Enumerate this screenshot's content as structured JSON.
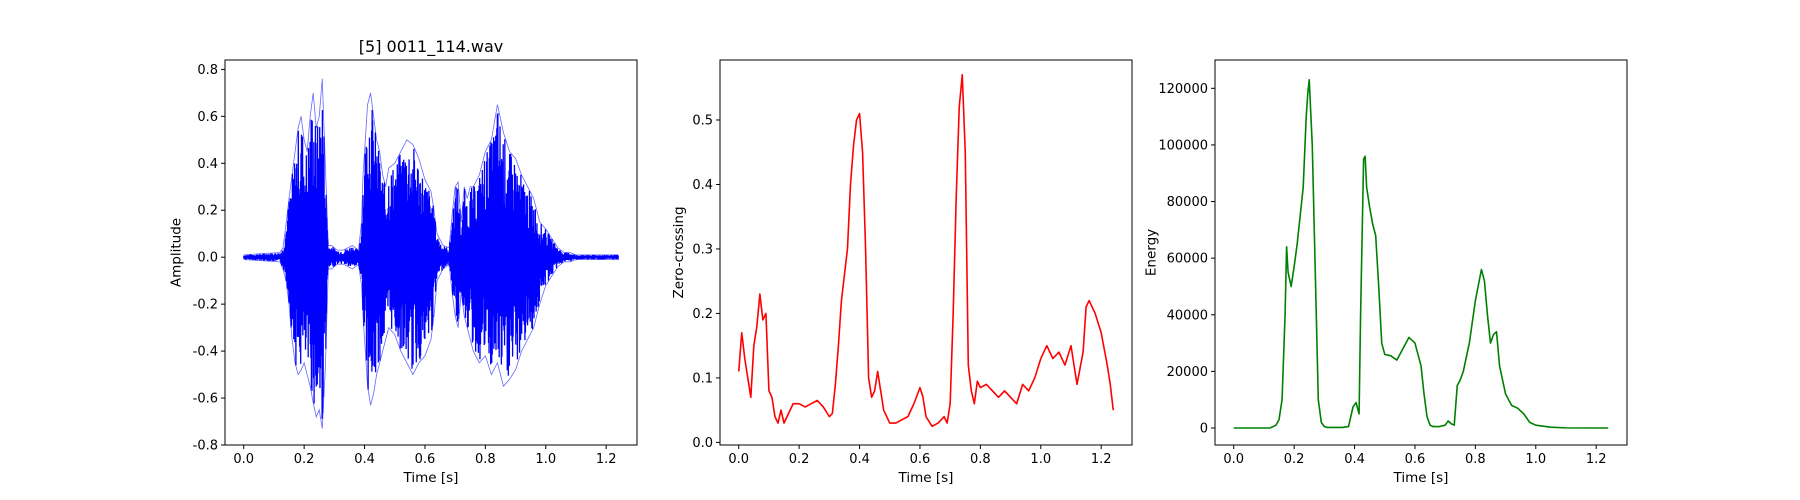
{
  "chart_data": [
    {
      "type": "line",
      "title": "[5] 0011_114.wav",
      "xlabel": "Time [s]",
      "ylabel": "Amplitude",
      "xlim": [
        -0.062,
        1.302
      ],
      "ylim": [
        -0.8,
        0.84
      ],
      "xticks": [
        0.0,
        0.2,
        0.4,
        0.6,
        0.8,
        1.0,
        1.2
      ],
      "yticks": [
        -0.8,
        -0.6,
        -0.4,
        -0.2,
        0.0,
        0.2,
        0.4,
        0.6,
        0.8
      ],
      "color": "#0000ff",
      "grid": false,
      "series": [
        {
          "envelope": {
            "x": [
              0.0,
              0.12,
              0.13,
              0.14,
              0.15,
              0.16,
              0.17,
              0.18,
              0.19,
              0.2,
              0.21,
              0.22,
              0.23,
              0.24,
              0.25,
              0.26,
              0.27,
              0.28,
              0.29,
              0.31,
              0.33,
              0.36,
              0.38,
              0.39,
              0.395,
              0.4,
              0.41,
              0.42,
              0.43,
              0.44,
              0.45,
              0.46,
              0.47,
              0.48,
              0.5,
              0.52,
              0.54,
              0.56,
              0.58,
              0.6,
              0.62,
              0.63,
              0.64,
              0.66,
              0.68,
              0.69,
              0.7,
              0.71,
              0.72,
              0.73,
              0.74,
              0.75,
              0.76,
              0.78,
              0.8,
              0.82,
              0.84,
              0.86,
              0.88,
              0.9,
              0.92,
              0.94,
              0.96,
              0.98,
              1.0,
              1.02,
              1.04,
              1.06,
              1.08,
              1.1,
              1.15,
              1.24
            ],
            "upper": [
              0.01,
              0.02,
              0.04,
              0.14,
              0.25,
              0.35,
              0.45,
              0.55,
              0.6,
              0.5,
              0.45,
              0.6,
              0.7,
              0.55,
              0.6,
              0.76,
              0.4,
              0.05,
              0.05,
              0.03,
              0.03,
              0.05,
              0.03,
              0.15,
              0.35,
              0.45,
              0.65,
              0.7,
              0.6,
              0.5,
              0.45,
              0.35,
              0.3,
              0.38,
              0.4,
              0.45,
              0.5,
              0.48,
              0.42,
              0.33,
              0.28,
              0.2,
              0.1,
              0.05,
              0.04,
              0.18,
              0.3,
              0.32,
              0.15,
              0.3,
              0.25,
              0.3,
              0.3,
              0.35,
              0.45,
              0.5,
              0.65,
              0.53,
              0.45,
              0.42,
              0.35,
              0.3,
              0.25,
              0.15,
              0.12,
              0.08,
              0.04,
              0.02,
              0.02,
              0.01,
              0.01,
              0.01
            ],
            "lower": [
              -0.01,
              -0.02,
              -0.05,
              -0.1,
              -0.2,
              -0.35,
              -0.45,
              -0.5,
              -0.48,
              -0.45,
              -0.5,
              -0.55,
              -0.62,
              -0.68,
              -0.65,
              -0.73,
              -0.48,
              -0.05,
              -0.05,
              -0.03,
              -0.03,
              -0.05,
              -0.03,
              -0.12,
              -0.25,
              -0.35,
              -0.55,
              -0.63,
              -0.58,
              -0.5,
              -0.45,
              -0.4,
              -0.35,
              -0.3,
              -0.33,
              -0.4,
              -0.45,
              -0.5,
              -0.45,
              -0.42,
              -0.35,
              -0.25,
              -0.1,
              -0.05,
              -0.03,
              -0.15,
              -0.25,
              -0.3,
              -0.15,
              -0.25,
              -0.3,
              -0.35,
              -0.4,
              -0.45,
              -0.42,
              -0.5,
              -0.45,
              -0.55,
              -0.52,
              -0.48,
              -0.4,
              -0.35,
              -0.3,
              -0.2,
              -0.12,
              -0.08,
              -0.04,
              -0.02,
              -0.02,
              -0.01,
              -0.01,
              -0.01
            ]
          }
        }
      ]
    },
    {
      "type": "line",
      "title": "",
      "xlabel": "Time [s]",
      "ylabel": "Zero-crossing",
      "xlim": [
        -0.062,
        1.302
      ],
      "ylim": [
        -0.004,
        0.593
      ],
      "xticks": [
        0.0,
        0.2,
        0.4,
        0.6,
        0.8,
        1.0,
        1.2
      ],
      "yticks": [
        0.0,
        0.1,
        0.2,
        0.3,
        0.4,
        0.5
      ],
      "color": "#ff0000",
      "grid": false,
      "series": [
        {
          "x": [
            0.0,
            0.01,
            0.02,
            0.03,
            0.04,
            0.05,
            0.06,
            0.07,
            0.08,
            0.09,
            0.1,
            0.11,
            0.12,
            0.13,
            0.14,
            0.15,
            0.16,
            0.18,
            0.2,
            0.22,
            0.24,
            0.26,
            0.28,
            0.3,
            0.31,
            0.32,
            0.33,
            0.34,
            0.35,
            0.36,
            0.37,
            0.38,
            0.39,
            0.4,
            0.41,
            0.42,
            0.43,
            0.44,
            0.45,
            0.46,
            0.47,
            0.48,
            0.5,
            0.52,
            0.54,
            0.56,
            0.58,
            0.6,
            0.61,
            0.62,
            0.64,
            0.66,
            0.68,
            0.69,
            0.7,
            0.71,
            0.72,
            0.73,
            0.74,
            0.75,
            0.76,
            0.77,
            0.78,
            0.79,
            0.8,
            0.82,
            0.84,
            0.86,
            0.88,
            0.9,
            0.92,
            0.94,
            0.96,
            0.98,
            1.0,
            1.02,
            1.04,
            1.06,
            1.08,
            1.1,
            1.12,
            1.14,
            1.15,
            1.16,
            1.18,
            1.2,
            1.22,
            1.23,
            1.24
          ],
          "y": [
            0.11,
            0.17,
            0.13,
            0.1,
            0.07,
            0.15,
            0.18,
            0.23,
            0.19,
            0.2,
            0.08,
            0.07,
            0.04,
            0.03,
            0.05,
            0.03,
            0.04,
            0.06,
            0.06,
            0.055,
            0.06,
            0.065,
            0.055,
            0.04,
            0.045,
            0.09,
            0.15,
            0.22,
            0.26,
            0.3,
            0.4,
            0.46,
            0.5,
            0.51,
            0.45,
            0.3,
            0.1,
            0.07,
            0.08,
            0.11,
            0.08,
            0.05,
            0.03,
            0.03,
            0.035,
            0.04,
            0.06,
            0.085,
            0.07,
            0.04,
            0.025,
            0.03,
            0.04,
            0.03,
            0.06,
            0.2,
            0.38,
            0.52,
            0.57,
            0.45,
            0.12,
            0.08,
            0.06,
            0.095,
            0.085,
            0.09,
            0.08,
            0.07,
            0.08,
            0.07,
            0.06,
            0.09,
            0.08,
            0.1,
            0.13,
            0.15,
            0.13,
            0.14,
            0.12,
            0.15,
            0.09,
            0.14,
            0.21,
            0.22,
            0.2,
            0.17,
            0.12,
            0.09,
            0.05
          ]
        }
      ]
    },
    {
      "type": "line",
      "title": "",
      "xlabel": "Time [s]",
      "ylabel": "Energy",
      "xlim": [
        -0.062,
        1.302
      ],
      "ylim": [
        -6000,
        130000
      ],
      "xticks": [
        0.0,
        0.2,
        0.4,
        0.6,
        0.8,
        1.0,
        1.2
      ],
      "yticks": [
        0,
        20000,
        40000,
        60000,
        80000,
        100000,
        120000
      ],
      "color": "#008000",
      "grid": false,
      "series": [
        {
          "x": [
            0.0,
            0.12,
            0.14,
            0.15,
            0.16,
            0.17,
            0.175,
            0.18,
            0.19,
            0.2,
            0.21,
            0.22,
            0.23,
            0.24,
            0.245,
            0.25,
            0.26,
            0.27,
            0.28,
            0.29,
            0.3,
            0.31,
            0.36,
            0.38,
            0.395,
            0.405,
            0.415,
            0.42,
            0.43,
            0.435,
            0.44,
            0.45,
            0.46,
            0.47,
            0.48,
            0.49,
            0.5,
            0.52,
            0.54,
            0.56,
            0.58,
            0.6,
            0.61,
            0.62,
            0.63,
            0.64,
            0.65,
            0.66,
            0.68,
            0.7,
            0.71,
            0.72,
            0.73,
            0.74,
            0.75,
            0.76,
            0.78,
            0.8,
            0.82,
            0.83,
            0.84,
            0.85,
            0.86,
            0.87,
            0.88,
            0.9,
            0.92,
            0.94,
            0.96,
            0.98,
            1.0,
            1.05,
            1.1,
            1.24
          ],
          "y": [
            0,
            0,
            1000,
            3000,
            10000,
            40000,
            64000,
            55000,
            50000,
            57000,
            65000,
            75000,
            85000,
            110000,
            118000,
            123000,
            100000,
            55000,
            10000,
            2000,
            500,
            200,
            200,
            500,
            7500,
            9000,
            5000,
            40000,
            95000,
            96000,
            85000,
            78000,
            72000,
            68000,
            50000,
            30000,
            26000,
            25500,
            24000,
            28000,
            32000,
            30000,
            26000,
            22000,
            12000,
            4000,
            1000,
            500,
            500,
            1000,
            2500,
            1500,
            1000,
            15000,
            17000,
            20000,
            30000,
            45000,
            56000,
            52000,
            40000,
            30000,
            33000,
            34000,
            22000,
            12000,
            8000,
            7000,
            5000,
            2000,
            1000,
            300,
            50,
            0
          ]
        }
      ]
    }
  ]
}
